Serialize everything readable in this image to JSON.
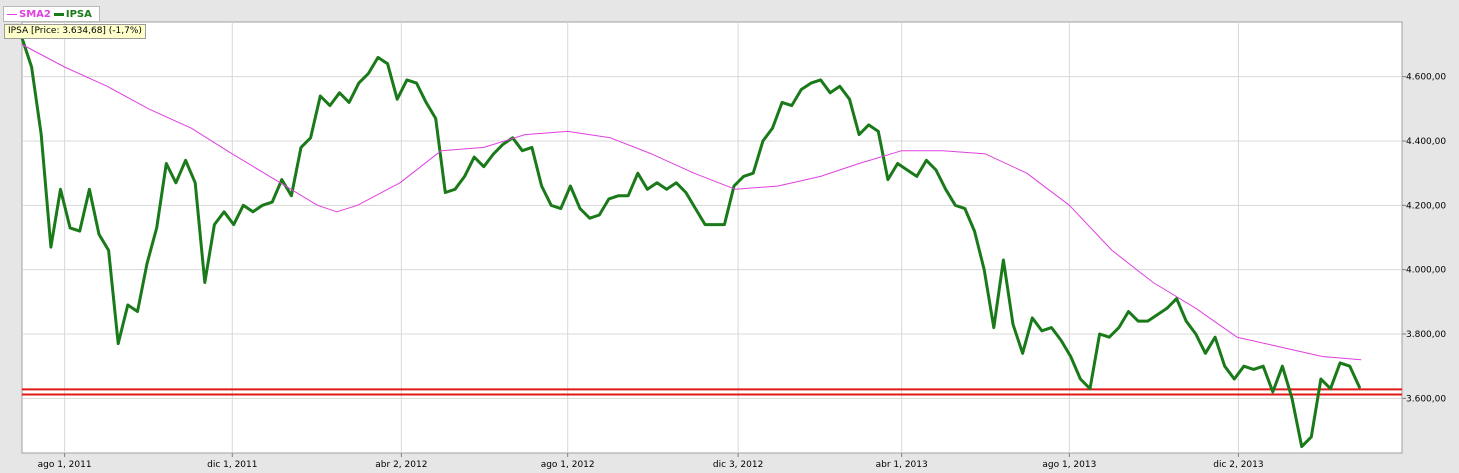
{
  "legend": {
    "sma": {
      "label": "SMA2",
      "color": "#e040e0"
    },
    "ipsa": {
      "label": "IPSA",
      "color": "#1a7a1a"
    }
  },
  "price_tag": "IPSA [Price: 3.634,68] (-1,7%)",
  "chart_data": {
    "type": "line",
    "x_tick_labels": [
      "ago 1, 2011",
      "dic 1, 2011",
      "abr 2, 2012",
      "ago 1, 2012",
      "dic 3, 2012",
      "abr 1, 2013",
      "ago 1, 2013",
      "dic 2, 2013"
    ],
    "y_tick_labels": [
      "3.600,00",
      "3.800,00",
      "4.000,00",
      "4.200,00",
      "4.400,00",
      "4.600,00"
    ],
    "y_ticks": [
      3600,
      3800,
      4000,
      4200,
      4400,
      4600
    ],
    "ylim": [
      3430,
      4770
    ],
    "x_start": "2011-07-01",
    "x_end": "2014-03-31",
    "grid": true,
    "legend_position": "top-left",
    "series": [
      {
        "name": "IPSA",
        "color": "#1a7a1a",
        "points": [
          [
            "2011-07-01",
            4720
          ],
          [
            "2011-07-08",
            4630
          ],
          [
            "2011-07-15",
            4420
          ],
          [
            "2011-07-22",
            4070
          ],
          [
            "2011-07-29",
            4250
          ],
          [
            "2011-08-05",
            4130
          ],
          [
            "2011-08-12",
            4120
          ],
          [
            "2011-08-19",
            4250
          ],
          [
            "2011-08-26",
            4110
          ],
          [
            "2011-09-02",
            4060
          ],
          [
            "2011-09-09",
            3770
          ],
          [
            "2011-09-16",
            3890
          ],
          [
            "2011-09-23",
            3870
          ],
          [
            "2011-09-30",
            4020
          ],
          [
            "2011-10-07",
            4130
          ],
          [
            "2011-10-14",
            4330
          ],
          [
            "2011-10-21",
            4270
          ],
          [
            "2011-10-28",
            4340
          ],
          [
            "2011-11-04",
            4270
          ],
          [
            "2011-11-11",
            3960
          ],
          [
            "2011-11-18",
            4140
          ],
          [
            "2011-11-25",
            4180
          ],
          [
            "2011-12-02",
            4140
          ],
          [
            "2011-12-09",
            4200
          ],
          [
            "2011-12-16",
            4180
          ],
          [
            "2011-12-23",
            4200
          ],
          [
            "2011-12-30",
            4210
          ],
          [
            "2012-01-06",
            4280
          ],
          [
            "2012-01-13",
            4230
          ],
          [
            "2012-01-20",
            4380
          ],
          [
            "2012-01-27",
            4410
          ],
          [
            "2012-02-03",
            4540
          ],
          [
            "2012-02-10",
            4510
          ],
          [
            "2012-02-17",
            4550
          ],
          [
            "2012-02-24",
            4520
          ],
          [
            "2012-03-02",
            4580
          ],
          [
            "2012-03-09",
            4610
          ],
          [
            "2012-03-16",
            4660
          ],
          [
            "2012-03-23",
            4640
          ],
          [
            "2012-03-30",
            4530
          ],
          [
            "2012-04-06",
            4590
          ],
          [
            "2012-04-13",
            4580
          ],
          [
            "2012-04-20",
            4520
          ],
          [
            "2012-04-27",
            4470
          ],
          [
            "2012-05-04",
            4240
          ],
          [
            "2012-05-11",
            4250
          ],
          [
            "2012-05-18",
            4290
          ],
          [
            "2012-05-25",
            4350
          ],
          [
            "2012-06-01",
            4320
          ],
          [
            "2012-06-08",
            4360
          ],
          [
            "2012-06-15",
            4390
          ],
          [
            "2012-06-22",
            4410
          ],
          [
            "2012-06-29",
            4370
          ],
          [
            "2012-07-06",
            4380
          ],
          [
            "2012-07-13",
            4260
          ],
          [
            "2012-07-20",
            4200
          ],
          [
            "2012-07-27",
            4190
          ],
          [
            "2012-08-03",
            4260
          ],
          [
            "2012-08-10",
            4190
          ],
          [
            "2012-08-17",
            4160
          ],
          [
            "2012-08-24",
            4170
          ],
          [
            "2012-08-31",
            4220
          ],
          [
            "2012-09-07",
            4230
          ],
          [
            "2012-09-14",
            4230
          ],
          [
            "2012-09-21",
            4300
          ],
          [
            "2012-09-28",
            4250
          ],
          [
            "2012-10-05",
            4270
          ],
          [
            "2012-10-12",
            4250
          ],
          [
            "2012-10-19",
            4270
          ],
          [
            "2012-10-26",
            4240
          ],
          [
            "2012-11-02",
            4190
          ],
          [
            "2012-11-09",
            4140
          ],
          [
            "2012-11-16",
            4140
          ],
          [
            "2012-11-23",
            4140
          ],
          [
            "2012-11-30",
            4260
          ],
          [
            "2012-12-07",
            4290
          ],
          [
            "2012-12-14",
            4300
          ],
          [
            "2012-12-21",
            4400
          ],
          [
            "2012-12-28",
            4440
          ],
          [
            "2013-01-04",
            4520
          ],
          [
            "2013-01-11",
            4510
          ],
          [
            "2013-01-18",
            4560
          ],
          [
            "2013-01-25",
            4580
          ],
          [
            "2013-02-01",
            4590
          ],
          [
            "2013-02-08",
            4550
          ],
          [
            "2013-02-15",
            4570
          ],
          [
            "2013-02-22",
            4530
          ],
          [
            "2013-03-01",
            4420
          ],
          [
            "2013-03-08",
            4450
          ],
          [
            "2013-03-15",
            4430
          ],
          [
            "2013-03-22",
            4280
          ],
          [
            "2013-03-29",
            4330
          ],
          [
            "2013-04-05",
            4310
          ],
          [
            "2013-04-12",
            4290
          ],
          [
            "2013-04-19",
            4340
          ],
          [
            "2013-04-26",
            4310
          ],
          [
            "2013-05-03",
            4250
          ],
          [
            "2013-05-10",
            4200
          ],
          [
            "2013-05-17",
            4190
          ],
          [
            "2013-05-24",
            4120
          ],
          [
            "2013-05-31",
            4000
          ],
          [
            "2013-06-07",
            3820
          ],
          [
            "2013-06-14",
            4030
          ],
          [
            "2013-06-21",
            3830
          ],
          [
            "2013-06-28",
            3740
          ],
          [
            "2013-07-05",
            3850
          ],
          [
            "2013-07-12",
            3810
          ],
          [
            "2013-07-19",
            3820
          ],
          [
            "2013-07-26",
            3780
          ],
          [
            "2013-08-02",
            3730
          ],
          [
            "2013-08-09",
            3660
          ],
          [
            "2013-08-16",
            3630
          ],
          [
            "2013-08-23",
            3800
          ],
          [
            "2013-08-30",
            3790
          ],
          [
            "2013-09-06",
            3820
          ],
          [
            "2013-09-13",
            3870
          ],
          [
            "2013-09-20",
            3840
          ],
          [
            "2013-09-27",
            3840
          ],
          [
            "2013-10-04",
            3860
          ],
          [
            "2013-10-11",
            3880
          ],
          [
            "2013-10-18",
            3910
          ],
          [
            "2013-10-25",
            3840
          ],
          [
            "2013-11-01",
            3800
          ],
          [
            "2013-11-08",
            3740
          ],
          [
            "2013-11-15",
            3790
          ],
          [
            "2013-11-22",
            3700
          ],
          [
            "2013-11-29",
            3660
          ],
          [
            "2013-12-06",
            3700
          ],
          [
            "2013-12-13",
            3690
          ],
          [
            "2013-12-20",
            3700
          ],
          [
            "2013-12-27",
            3620
          ],
          [
            "2014-01-03",
            3700
          ],
          [
            "2014-01-10",
            3600
          ],
          [
            "2014-01-17",
            3450
          ],
          [
            "2014-01-24",
            3480
          ],
          [
            "2014-01-31",
            3660
          ],
          [
            "2014-02-07",
            3630
          ],
          [
            "2014-02-14",
            3710
          ],
          [
            "2014-02-21",
            3700
          ],
          [
            "2014-02-28",
            3635
          ]
        ]
      },
      {
        "name": "SMA2",
        "color": "#e040e0",
        "points": [
          [
            "2011-07-01",
            4700
          ],
          [
            "2011-08-01",
            4630
          ],
          [
            "2011-09-01",
            4570
          ],
          [
            "2011-10-01",
            4500
          ],
          [
            "2011-11-01",
            4440
          ],
          [
            "2011-12-01",
            4360
          ],
          [
            "2012-01-01",
            4280
          ],
          [
            "2012-02-01",
            4200
          ],
          [
            "2012-02-15",
            4180
          ],
          [
            "2012-03-01",
            4200
          ],
          [
            "2012-04-01",
            4270
          ],
          [
            "2012-05-01",
            4370
          ],
          [
            "2012-06-01",
            4380
          ],
          [
            "2012-07-01",
            4420
          ],
          [
            "2012-08-01",
            4430
          ],
          [
            "2012-09-01",
            4410
          ],
          [
            "2012-10-01",
            4360
          ],
          [
            "2012-11-01",
            4300
          ],
          [
            "2012-12-01",
            4250
          ],
          [
            "2013-01-01",
            4260
          ],
          [
            "2013-02-01",
            4290
          ],
          [
            "2013-03-01",
            4330
          ],
          [
            "2013-04-01",
            4370
          ],
          [
            "2013-05-01",
            4370
          ],
          [
            "2013-06-01",
            4360
          ],
          [
            "2013-07-01",
            4300
          ],
          [
            "2013-08-01",
            4200
          ],
          [
            "2013-09-01",
            4060
          ],
          [
            "2013-10-01",
            3960
          ],
          [
            "2013-11-01",
            3880
          ],
          [
            "2013-12-01",
            3790
          ],
          [
            "2014-01-01",
            3760
          ],
          [
            "2014-02-01",
            3730
          ],
          [
            "2014-03-01",
            3720
          ]
        ]
      }
    ],
    "reference_lines": [
      {
        "y": 3628,
        "color": "#e01818"
      },
      {
        "y": 3612,
        "color": "#e01818"
      }
    ]
  }
}
